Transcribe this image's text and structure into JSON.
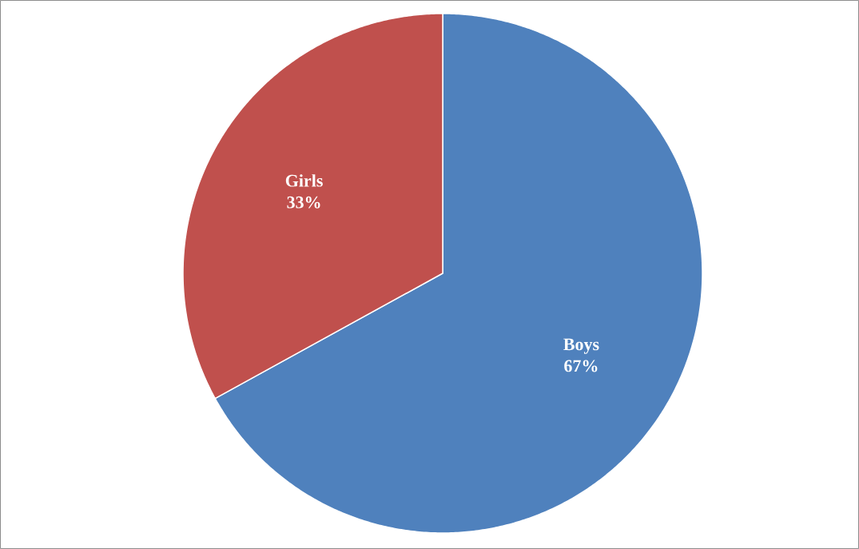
{
  "chart_data": {
    "type": "pie",
    "categories": [
      "Boys",
      "Girls"
    ],
    "values": [
      67,
      33
    ],
    "colors": [
      "#4f81bd",
      "#c0504d"
    ],
    "value_labels": [
      "67%",
      "33%"
    ]
  }
}
